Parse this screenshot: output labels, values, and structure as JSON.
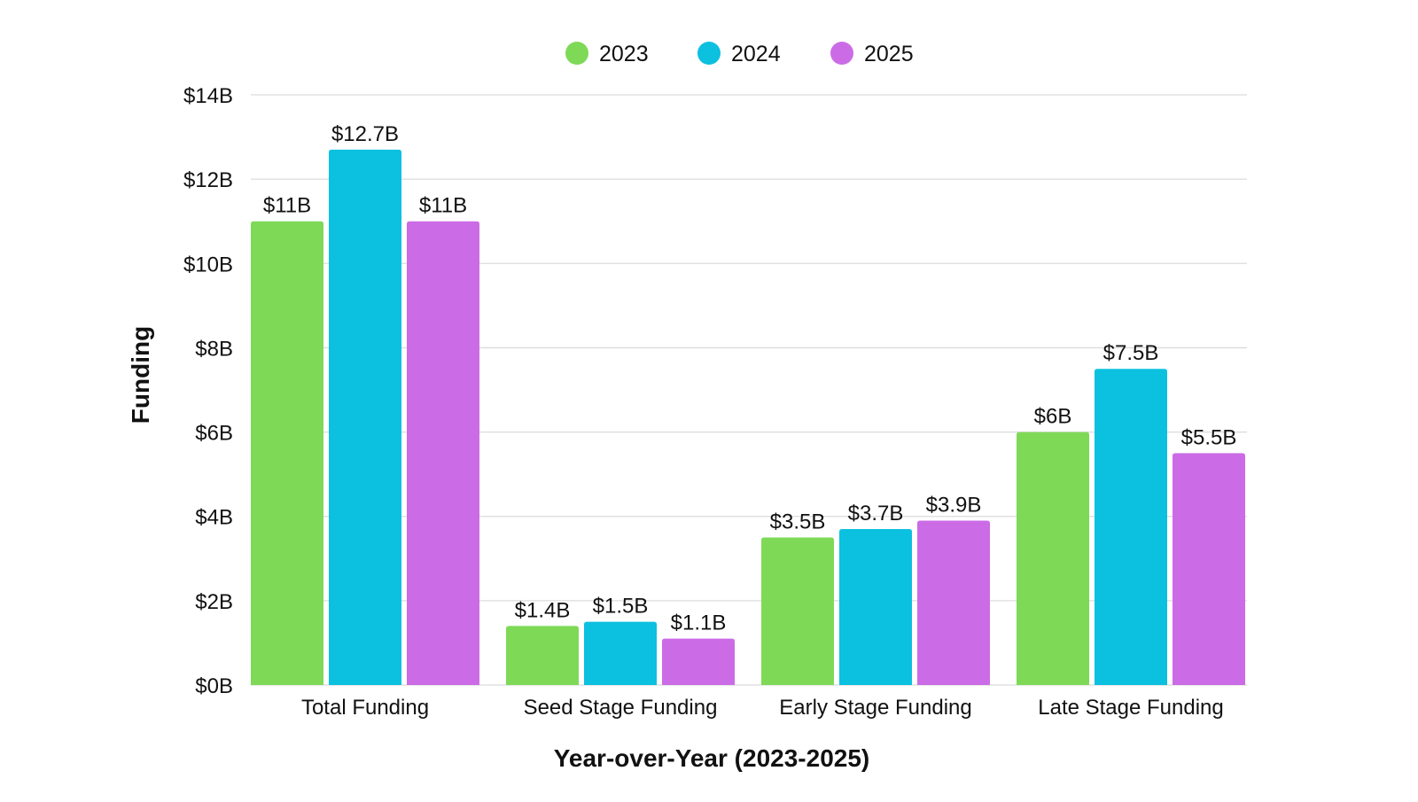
{
  "chart_data": {
    "type": "bar",
    "title": "",
    "xlabel": "Year-over-Year (2023-2025)",
    "ylabel": "Funding",
    "ylim": [
      0,
      14
    ],
    "yticks": [
      0,
      2,
      4,
      6,
      8,
      10,
      12,
      14
    ],
    "ytick_labels": [
      "$0B",
      "$2B",
      "$4B",
      "$6B",
      "$8B",
      "$10B",
      "$12B",
      "$14B"
    ],
    "grid": true,
    "legend_placement": "top",
    "categories": [
      "Total Funding",
      "Seed Stage Funding",
      "Early Stage Funding",
      "Late Stage Funding"
    ],
    "series": [
      {
        "name": "2023",
        "color": "#7ED957",
        "values": [
          11,
          1.4,
          3.5,
          6
        ],
        "labels": [
          "$11B",
          "$1.4B",
          "$3.5B",
          "$6B"
        ]
      },
      {
        "name": "2024",
        "color": "#0CC0DF",
        "values": [
          12.7,
          1.5,
          3.7,
          7.5
        ],
        "labels": [
          "$12.7B",
          "$1.5B",
          "$3.7B",
          "$7.5B"
        ]
      },
      {
        "name": "2025",
        "color": "#CB6CE6",
        "values": [
          11,
          1.1,
          3.9,
          5.5
        ],
        "labels": [
          "$11B",
          "$1.1B",
          "$3.9B",
          "$5.5B"
        ]
      }
    ]
  }
}
